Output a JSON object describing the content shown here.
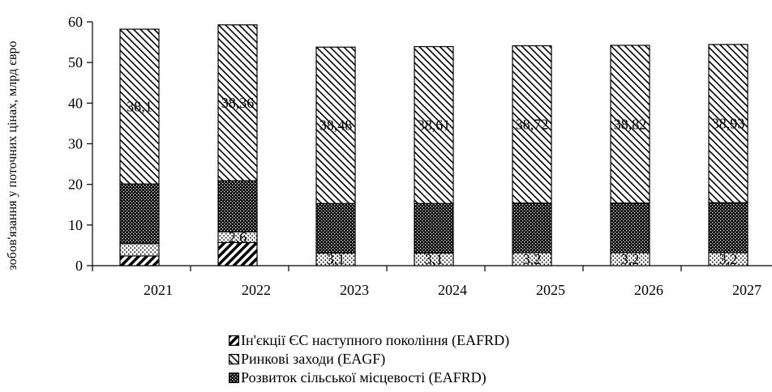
{
  "chart_data": {
    "type": "bar",
    "stacked": true,
    "ylabel": "зобов'язання у поточних цінах, млрд євро",
    "ylim": [
      0,
      60
    ],
    "yticks": [
      "0",
      "10",
      "20",
      "30",
      "40",
      "50",
      "60"
    ],
    "categories": [
      "2021",
      "2022",
      "2023",
      "2024",
      "2025",
      "2026",
      "2027"
    ],
    "grid": false,
    "legend_position": "bottom",
    "series": [
      {
        "name": "Ін'єкції ЄС наступного покоління (EAFRD)",
        "values": [
          2.4,
          5.7,
          0,
          0,
          0,
          0,
          0
        ],
        "labels": [
          "",
          "",
          "",
          "",
          "",
          "",
          ""
        ],
        "pattern": "hatch-forward",
        "color": "#000000"
      },
      {
        "name": "",
        "values": [
          3.0,
          2.6,
          3.1,
          3.1,
          3.2,
          3.2,
          3.2
        ],
        "labels": [
          "",
          "2,6",
          "3,1",
          "3,1",
          "3,2",
          "3,2",
          "3,2"
        ],
        "pattern": "light-dots",
        "color": "#000000"
      },
      {
        "name": "Розвиток сільської місцевості (EAFRD)",
        "values": [
          14.7,
          12.6,
          12.2,
          12.2,
          12.2,
          12.2,
          12.3
        ],
        "labels": [
          "",
          "",
          "",
          "",
          "",
          "",
          ""
        ],
        "pattern": "dense-dots",
        "color": "#000000"
      },
      {
        "name": "Ринкові заходи (EAGF)",
        "values": [
          38.1,
          38.36,
          38.48,
          38.61,
          38.72,
          38.82,
          38.93
        ],
        "labels": [
          "38,1",
          "38,36",
          "38,48",
          "38,61",
          "38,72",
          "38,82",
          "38,93"
        ],
        "pattern": "hatch-backward",
        "color": "#000000"
      }
    ]
  }
}
